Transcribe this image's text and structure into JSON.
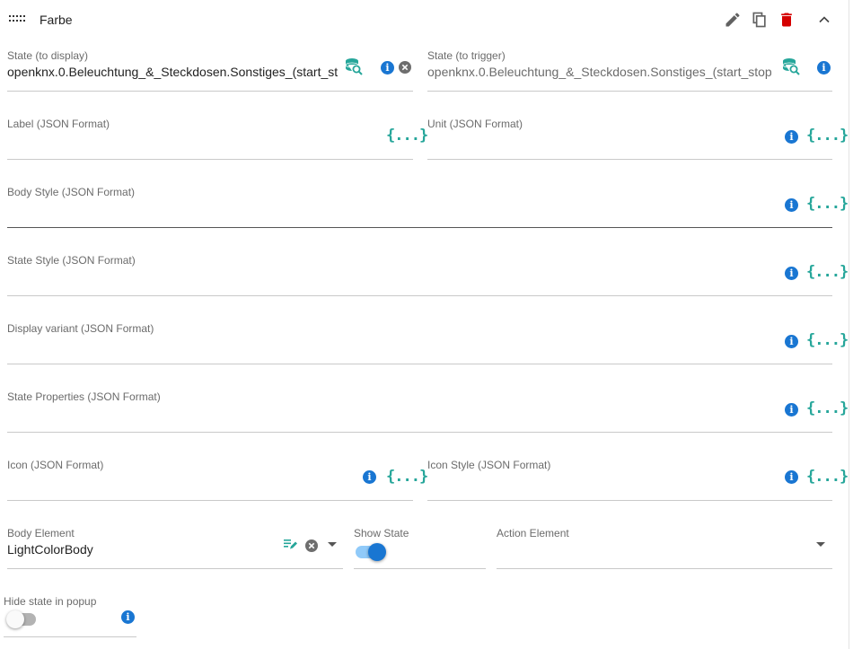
{
  "header": {
    "title": "Farbe",
    "icons": [
      "drag-handle-icon",
      "pencil-icon",
      "copy-icon",
      "trash-icon",
      "chevron-up-icon"
    ]
  },
  "fields": {
    "state_display": {
      "label": "State (to display)",
      "value": "openknx.0.Beleuchtung_&_Steckdosen.Sonstiges_(start_st"
    },
    "state_trigger": {
      "label": "State (to trigger)",
      "value": "openknx.0.Beleuchtung_&_Steckdosen.Sonstiges_(start_stop"
    },
    "label_json": {
      "label": "Label (JSON Format)"
    },
    "unit_json": {
      "label": "Unit (JSON Format)"
    },
    "body_style": {
      "label": "Body Style (JSON Format)"
    },
    "state_style": {
      "label": "State Style (JSON Format)"
    },
    "display_variant": {
      "label": "Display variant (JSON Format)"
    },
    "state_properties": {
      "label": "State Properties (JSON Format)"
    },
    "icon_json": {
      "label": "Icon (JSON Format)"
    },
    "icon_style": {
      "label": "Icon Style (JSON Format)"
    },
    "body_element": {
      "label": "Body Element",
      "value": "LightColorBody"
    },
    "show_state": {
      "label": "Show State",
      "checked": true
    },
    "action_element": {
      "label": "Action Element",
      "value": ""
    },
    "hide_state_popup": {
      "label": "Hide state in popup",
      "checked": false
    }
  },
  "glyphs": {
    "braces": "{...}",
    "info": "i"
  },
  "colors": {
    "accent_blue": "#1976d2",
    "teal": "#26a69a",
    "delete_red": "#d50000",
    "toggle_on_thumb": "#1976d2",
    "toggle_on_track": "#90caf9"
  }
}
